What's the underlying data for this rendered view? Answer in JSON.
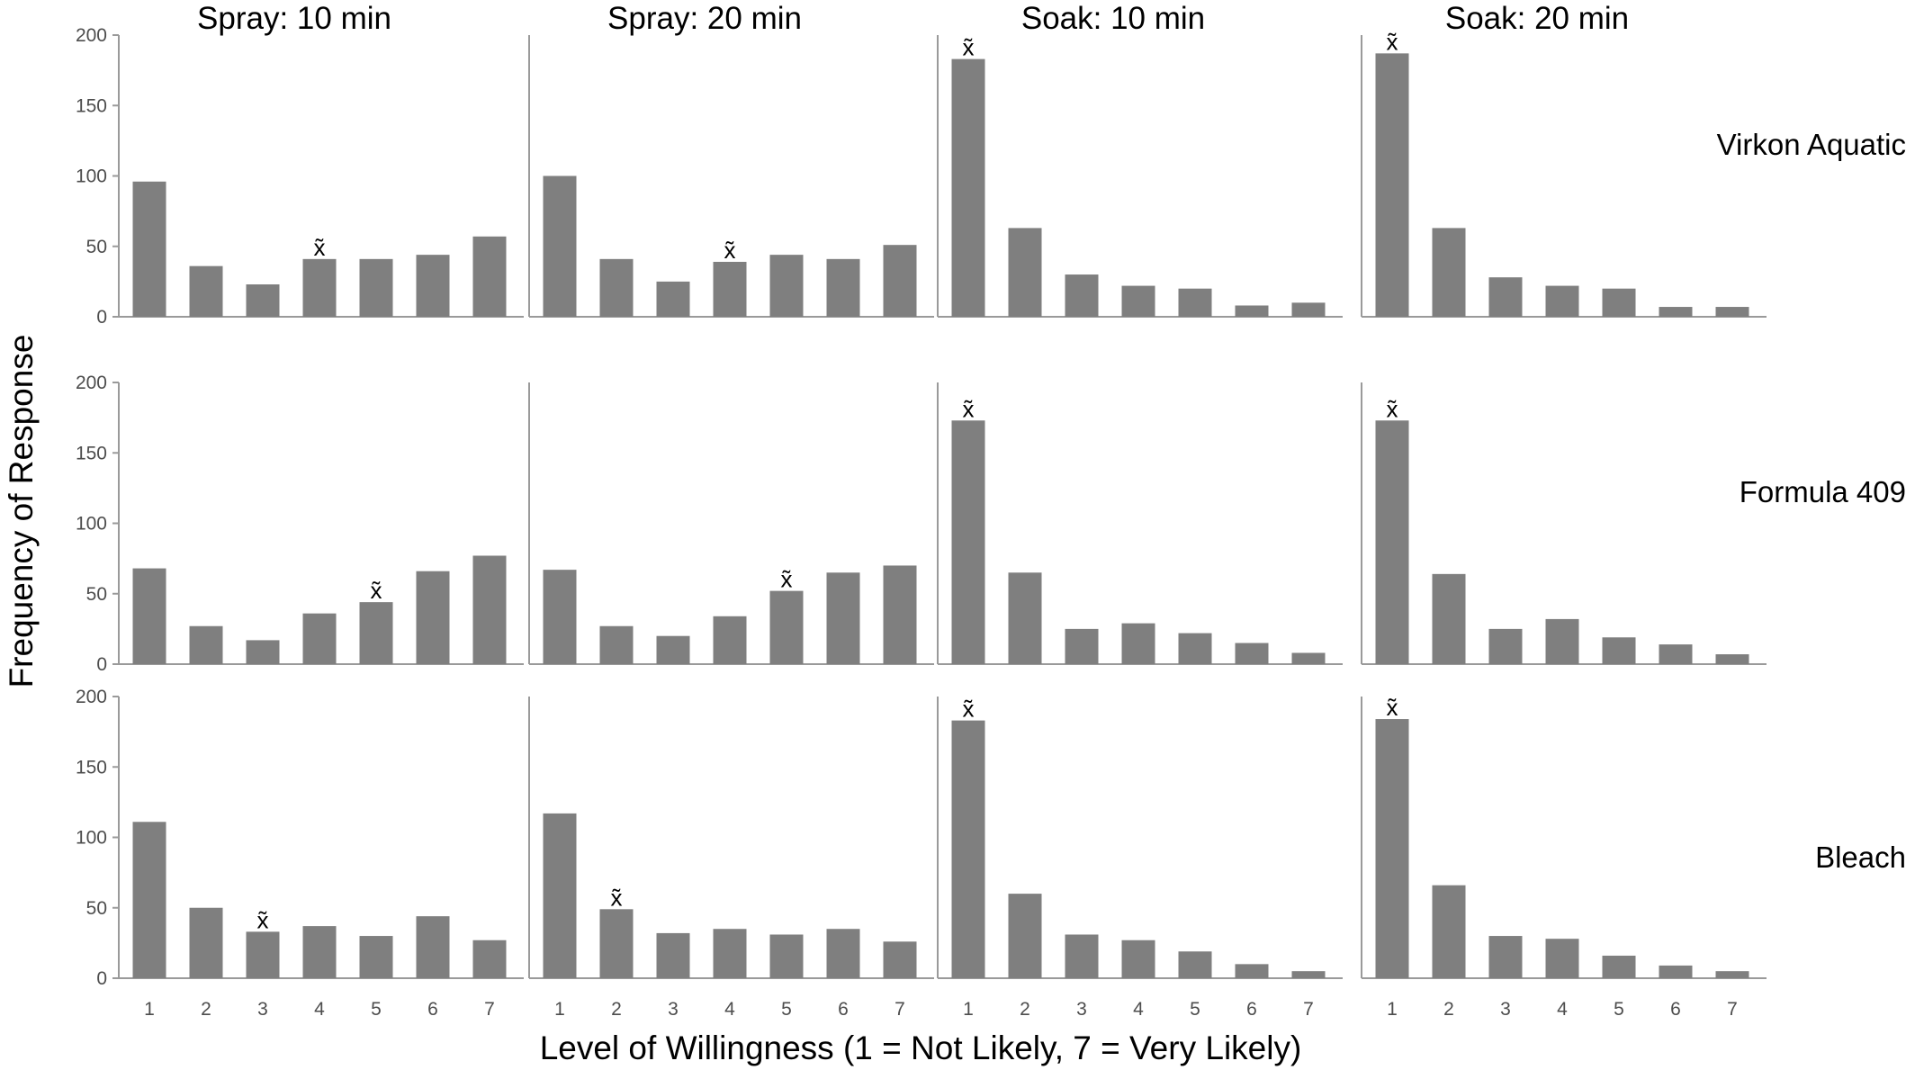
{
  "chart_data": {
    "type": "bar",
    "title": "",
    "xlabel": "Level of Willingness (1 = Not Likely, 7 = Very Likely)",
    "ylabel": "Frequency of Response",
    "categories": [
      "1",
      "2",
      "3",
      "4",
      "5",
      "6",
      "7"
    ],
    "ylim": [
      0,
      200
    ],
    "yticks": [
      "0",
      "50",
      "100",
      "150",
      "200"
    ],
    "median_marker": "x̃",
    "columns": [
      "Spray: 10 min",
      "Spray: 20 min",
      "Soak: 10 min",
      "Soak: 20 min"
    ],
    "rows": [
      "Virkon Aquatic",
      "Formula 409",
      "Bleach"
    ],
    "bar_color": "#7f7f7f",
    "grid": false,
    "panels": [
      {
        "row": "Virkon Aquatic",
        "column": "Spray: 10 min",
        "values": [
          96,
          36,
          23,
          41,
          41,
          44,
          57
        ],
        "median": "4"
      },
      {
        "row": "Virkon Aquatic",
        "column": "Spray: 20 min",
        "values": [
          100,
          41,
          25,
          39,
          44,
          41,
          51
        ],
        "median": "4"
      },
      {
        "row": "Virkon Aquatic",
        "column": "Soak: 10 min",
        "values": [
          183,
          63,
          30,
          22,
          20,
          8,
          10
        ],
        "median": "1"
      },
      {
        "row": "Virkon Aquatic",
        "column": "Soak: 20 min",
        "values": [
          187,
          63,
          28,
          22,
          20,
          7,
          7
        ],
        "median": "1"
      },
      {
        "row": "Formula 409",
        "column": "Spray: 10 min",
        "values": [
          68,
          27,
          17,
          36,
          44,
          66,
          77
        ],
        "median": "5"
      },
      {
        "row": "Formula 409",
        "column": "Spray: 20 min",
        "values": [
          67,
          27,
          20,
          34,
          52,
          65,
          70
        ],
        "median": "5"
      },
      {
        "row": "Formula 409",
        "column": "Soak: 10 min",
        "values": [
          173,
          65,
          25,
          29,
          22,
          15,
          8
        ],
        "median": "1"
      },
      {
        "row": "Formula 409",
        "column": "Soak: 20 min",
        "values": [
          173,
          64,
          25,
          32,
          19,
          14,
          7
        ],
        "median": "1"
      },
      {
        "row": "Bleach",
        "column": "Spray: 10 min",
        "values": [
          111,
          50,
          33,
          37,
          30,
          44,
          27
        ],
        "median": "3"
      },
      {
        "row": "Bleach",
        "column": "Spray: 20 min",
        "values": [
          117,
          49,
          32,
          35,
          31,
          35,
          26
        ],
        "median": "2"
      },
      {
        "row": "Bleach",
        "column": "Soak: 10 min",
        "values": [
          183,
          60,
          31,
          27,
          19,
          10,
          5
        ],
        "median": "1"
      },
      {
        "row": "Bleach",
        "column": "Soak: 20 min",
        "values": [
          184,
          66,
          30,
          28,
          16,
          9,
          5
        ],
        "median": "1"
      }
    ]
  }
}
